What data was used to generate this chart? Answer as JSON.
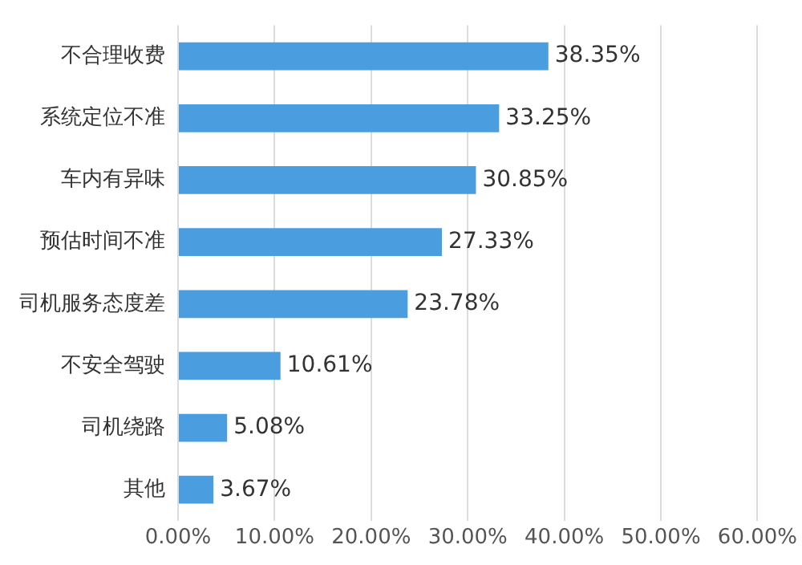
{
  "chart_data": {
    "type": "bar",
    "orientation": "horizontal",
    "categories": [
      "不合理收费",
      "系统定位不准",
      "车内有异味",
      "预估时间不准",
      "司机服务态度差",
      "不安全驾驶",
      "司机绕路",
      "其他"
    ],
    "values": [
      38.35,
      33.25,
      30.85,
      27.33,
      23.78,
      10.61,
      5.08,
      3.67
    ],
    "value_labels": [
      "38.35%",
      "33.25%",
      "30.85%",
      "27.33%",
      "23.78%",
      "10.61%",
      "5.08%",
      "3.67%"
    ],
    "color": "#4a9ee0",
    "xlim": [
      0,
      60
    ],
    "xticks": [
      {
        "value": 0,
        "label": "0.00%"
      },
      {
        "value": 10,
        "label": "10.00%"
      },
      {
        "value": 20,
        "label": "20.00%"
      },
      {
        "value": 30,
        "label": "30.00%"
      },
      {
        "value": 40,
        "label": "40.00%"
      },
      {
        "value": 50,
        "label": "50.00%"
      },
      {
        "value": 60,
        "label": "60.00%"
      }
    ],
    "grid": "x",
    "legend": false
  }
}
